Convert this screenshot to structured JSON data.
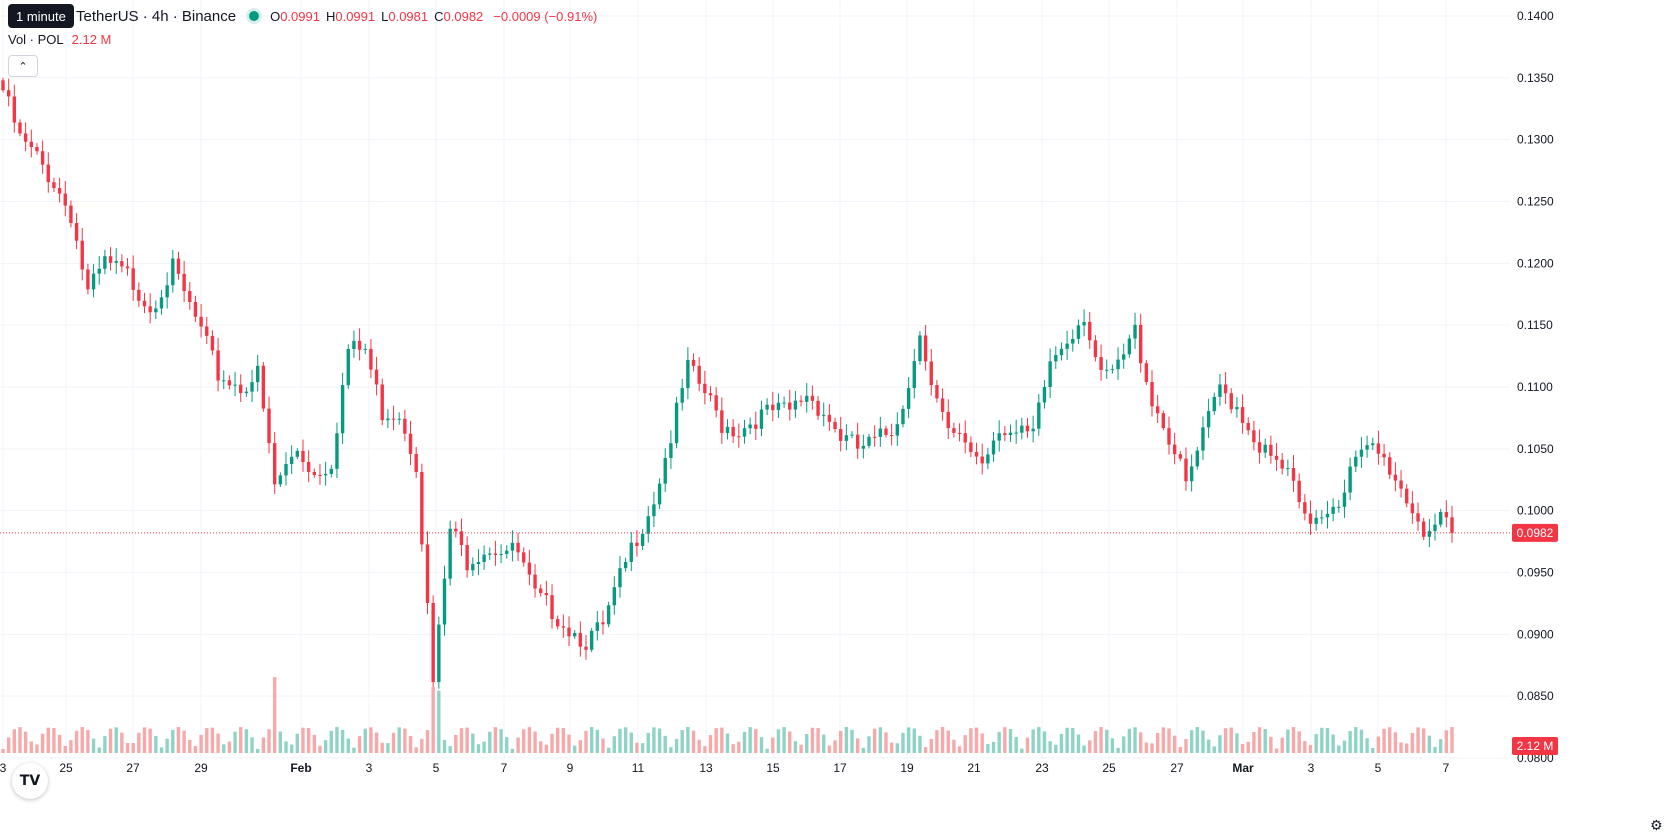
{
  "header": {
    "tooltip": "1 minute",
    "title": "TetherUS · 4h · Binance",
    "ohlc": {
      "o_label": "O",
      "o": "0.0991",
      "h_label": "H",
      "h": "0.0991",
      "l_label": "L",
      "l": "0.0981",
      "c_label": "C",
      "c": "0.0982",
      "change": "−0.0009 (−0.91%)"
    },
    "volume_label": "Vol · POL",
    "volume_value": "2.12 M"
  },
  "price_badge": "0.0982",
  "volume_badge": "2.12 M",
  "logo": "TV",
  "icons": {
    "collapse": "chevron-up-icon",
    "settings": "gear-icon",
    "logo": "tradingview-logo"
  },
  "colors": {
    "up": "#089981",
    "down": "#f23645",
    "up_vol": "#8fd3c7",
    "down_vol": "#f7a9a9",
    "grid": "#f0f3fa"
  },
  "chart_data": {
    "type": "candlestick",
    "y_ticks": [
      "0.1400",
      "0.1350",
      "0.1300",
      "0.1250",
      "0.1200",
      "0.1150",
      "0.1100",
      "0.1050",
      "0.1000",
      "0.0950",
      "0.0900",
      "0.0850",
      "0.0800"
    ],
    "x_ticks": [
      "3",
      "25",
      "27",
      "29",
      "Feb",
      "3",
      "5",
      "7",
      "9",
      "11",
      "13",
      "15",
      "17",
      "19",
      "21",
      "23",
      "25",
      "27",
      "Mar",
      "3",
      "5",
      "7"
    ],
    "ylim": [
      0.0797,
      0.1409
    ],
    "last_price": 0.0982,
    "anchors": [
      [
        0,
        0.134
      ],
      [
        3,
        0.13
      ],
      [
        6,
        0.1285
      ],
      [
        9,
        0.1265
      ],
      [
        12,
        0.124
      ],
      [
        15,
        0.1175
      ],
      [
        18,
        0.12
      ],
      [
        22,
        0.119
      ],
      [
        26,
        0.1165
      ],
      [
        30,
        0.1195
      ],
      [
        34,
        0.1155
      ],
      [
        38,
        0.111
      ],
      [
        42,
        0.11
      ],
      [
        45,
        0.111
      ],
      [
        48,
        0.102
      ],
      [
        52,
        0.105
      ],
      [
        55,
        0.103
      ],
      [
        58,
        0.104
      ],
      [
        61,
        0.113
      ],
      [
        64,
        0.113
      ],
      [
        67,
        0.108
      ],
      [
        70,
        0.108
      ],
      [
        73,
        0.104
      ],
      [
        76,
        0.086
      ],
      [
        79,
        0.0985
      ],
      [
        82,
        0.096
      ],
      [
        85,
        0.097
      ],
      [
        88,
        0.097
      ],
      [
        91,
        0.0965
      ],
      [
        94,
        0.093
      ],
      [
        97,
        0.092
      ],
      [
        100,
        0.0905
      ],
      [
        103,
        0.0895
      ],
      [
        106,
        0.0905
      ],
      [
        109,
        0.0945
      ],
      [
        112,
        0.098
      ],
      [
        115,
        0.101
      ],
      [
        118,
        0.106
      ],
      [
        121,
        0.1115
      ],
      [
        124,
        0.1095
      ],
      [
        127,
        0.107
      ],
      [
        130,
        0.1065
      ],
      [
        133,
        0.1075
      ],
      [
        136,
        0.108
      ],
      [
        139,
        0.108
      ],
      [
        142,
        0.1095
      ],
      [
        145,
        0.108
      ],
      [
        148,
        0.106
      ],
      [
        151,
        0.105
      ],
      [
        154,
        0.1055
      ],
      [
        157,
        0.1065
      ],
      [
        160,
        0.11
      ],
      [
        162,
        0.115
      ],
      [
        164,
        0.11
      ],
      [
        167,
        0.106
      ],
      [
        170,
        0.1055
      ],
      [
        173,
        0.104
      ],
      [
        176,
        0.107
      ],
      [
        179,
        0.106
      ],
      [
        182,
        0.106
      ],
      [
        185,
        0.112
      ],
      [
        188,
        0.114
      ],
      [
        191,
        0.116
      ],
      [
        194,
        0.1105
      ],
      [
        197,
        0.1115
      ],
      [
        200,
        0.1145
      ],
      [
        203,
        0.109
      ],
      [
        206,
        0.106
      ],
      [
        209,
        0.102
      ],
      [
        212,
        0.106
      ],
      [
        215,
        0.11
      ],
      [
        218,
        0.1085
      ],
      [
        221,
        0.106
      ],
      [
        224,
        0.104
      ],
      [
        227,
        0.103
      ],
      [
        230,
        0.099
      ],
      [
        233,
        0.1
      ],
      [
        236,
        0.101
      ],
      [
        239,
        0.104
      ],
      [
        242,
        0.105
      ],
      [
        245,
        0.1035
      ],
      [
        248,
        0.101
      ],
      [
        251,
        0.0985
      ],
      [
        254,
        0.099
      ],
      [
        256,
        0.0982
      ]
    ]
  }
}
